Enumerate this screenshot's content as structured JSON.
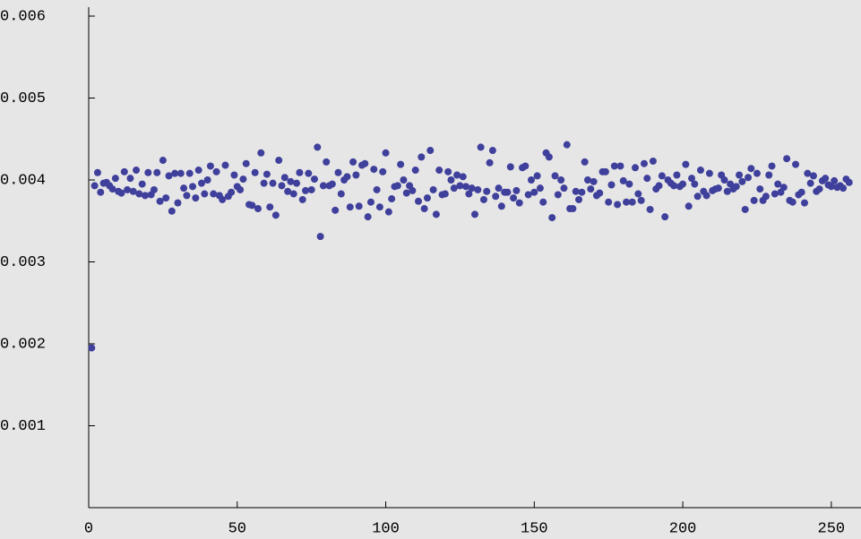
{
  "chart_data": {
    "type": "scatter",
    "color": "#3f3f9c",
    "xlim": [
      0,
      260
    ],
    "ylim": [
      0,
      0.006
    ],
    "xticks": [
      0,
      50,
      100,
      150,
      200,
      250
    ],
    "yticks": [
      0.001,
      0.002,
      0.003,
      0.004,
      0.005,
      0.006
    ],
    "x": [
      1,
      2,
      3,
      4,
      5,
      6,
      7,
      8,
      9,
      10,
      11,
      12,
      13,
      14,
      15,
      16,
      17,
      18,
      19,
      20,
      21,
      22,
      23,
      24,
      25,
      26,
      27,
      28,
      29,
      30,
      31,
      32,
      33,
      34,
      35,
      36,
      37,
      38,
      39,
      40,
      41,
      42,
      43,
      44,
      45,
      46,
      47,
      48,
      49,
      50,
      51,
      52,
      53,
      54,
      55,
      56,
      57,
      58,
      59,
      60,
      61,
      62,
      63,
      64,
      65,
      66,
      67,
      68,
      69,
      70,
      71,
      72,
      73,
      74,
      75,
      76,
      77,
      78,
      79,
      80,
      81,
      82,
      83,
      84,
      85,
      86,
      87,
      88,
      89,
      90,
      91,
      92,
      93,
      94,
      95,
      96,
      97,
      98,
      99,
      100,
      101,
      102,
      103,
      104,
      105,
      106,
      107,
      108,
      109,
      110,
      111,
      112,
      113,
      114,
      115,
      116,
      117,
      118,
      119,
      120,
      121,
      122,
      123,
      124,
      125,
      126,
      127,
      128,
      129,
      130,
      131,
      132,
      133,
      134,
      135,
      136,
      137,
      138,
      139,
      140,
      141,
      142,
      143,
      144,
      145,
      146,
      147,
      148,
      149,
      150,
      151,
      152,
      153,
      154,
      155,
      156,
      157,
      158,
      159,
      160,
      161,
      162,
      163,
      164,
      165,
      166,
      167,
      168,
      169,
      170,
      171,
      172,
      173,
      174,
      175,
      176,
      177,
      178,
      179,
      180,
      181,
      182,
      183,
      184,
      185,
      186,
      187,
      188,
      189,
      190,
      191,
      192,
      193,
      194,
      195,
      196,
      197,
      198,
      199,
      200,
      201,
      202,
      203,
      204,
      205,
      206,
      207,
      208,
      209,
      210,
      211,
      212,
      213,
      214,
      215,
      216,
      217,
      218,
      219,
      220,
      221,
      222,
      223,
      224,
      225,
      226,
      227,
      228,
      229,
      230,
      231,
      232,
      233,
      234,
      235,
      236,
      237,
      238,
      239,
      240,
      241,
      242,
      243,
      244,
      245,
      246,
      247,
      248,
      249,
      250,
      251,
      252,
      253,
      254,
      255,
      256
    ],
    "values": [
      0.00195,
      0.00393,
      0.00409,
      0.00385,
      0.00396,
      0.00397,
      0.00393,
      0.00389,
      0.00402,
      0.00386,
      0.00384,
      0.0041,
      0.00388,
      0.00402,
      0.00386,
      0.00412,
      0.00383,
      0.00395,
      0.00381,
      0.00409,
      0.00382,
      0.00388,
      0.00409,
      0.00374,
      0.00424,
      0.00378,
      0.00405,
      0.00362,
      0.00408,
      0.00372,
      0.00408,
      0.0039,
      0.00381,
      0.00408,
      0.00392,
      0.00378,
      0.00412,
      0.00396,
      0.00383,
      0.004,
      0.00417,
      0.00383,
      0.0041,
      0.00381,
      0.00376,
      0.00418,
      0.0038,
      0.00385,
      0.00406,
      0.00392,
      0.00388,
      0.00401,
      0.0042,
      0.0037,
      0.00369,
      0.00409,
      0.00365,
      0.00433,
      0.00396,
      0.00407,
      0.00367,
      0.00396,
      0.00357,
      0.00424,
      0.00393,
      0.00403,
      0.00386,
      0.00398,
      0.00383,
      0.00396,
      0.00409,
      0.00376,
      0.00387,
      0.00408,
      0.00388,
      0.00401,
      0.0044,
      0.00331,
      0.00393,
      0.00422,
      0.00393,
      0.00395,
      0.00363,
      0.00409,
      0.00383,
      0.004,
      0.00404,
      0.00367,
      0.00422,
      0.00406,
      0.00368,
      0.00418,
      0.0042,
      0.00355,
      0.00373,
      0.00413,
      0.00388,
      0.00367,
      0.0041,
      0.00433,
      0.00361,
      0.00377,
      0.00392,
      0.00393,
      0.00419,
      0.004,
      0.00384,
      0.00393,
      0.00387,
      0.00412,
      0.00374,
      0.00428,
      0.00365,
      0.00378,
      0.00436,
      0.00388,
      0.00358,
      0.00412,
      0.00382,
      0.00383,
      0.0041,
      0.004,
      0.0039,
      0.00406,
      0.00393,
      0.00404,
      0.00392,
      0.00383,
      0.0039,
      0.00358,
      0.00388,
      0.0044,
      0.00376,
      0.00386,
      0.00421,
      0.00436,
      0.0038,
      0.0039,
      0.00368,
      0.00385,
      0.00385,
      0.00416,
      0.00378,
      0.00387,
      0.00372,
      0.00415,
      0.00417,
      0.00382,
      0.004,
      0.00385,
      0.00405,
      0.0039,
      0.00373,
      0.00433,
      0.00428,
      0.00354,
      0.00405,
      0.00382,
      0.004,
      0.0039,
      0.00443,
      0.00365,
      0.00365,
      0.00386,
      0.00376,
      0.00385,
      0.00422,
      0.004,
      0.00389,
      0.00398,
      0.00381,
      0.00384,
      0.0041,
      0.0041,
      0.00373,
      0.00394,
      0.00417,
      0.0037,
      0.00417,
      0.00399,
      0.00373,
      0.00395,
      0.00373,
      0.00415,
      0.00383,
      0.00375,
      0.0042,
      0.00402,
      0.00364,
      0.00423,
      0.00389,
      0.00393,
      0.00405,
      0.00355,
      0.004,
      0.00396,
      0.00393,
      0.00406,
      0.00392,
      0.00395,
      0.00419,
      0.00368,
      0.00402,
      0.00395,
      0.0038,
      0.00412,
      0.00386,
      0.00381,
      0.00408,
      0.00387,
      0.00389,
      0.0039,
      0.00406,
      0.004,
      0.00386,
      0.00395,
      0.00389,
      0.00392,
      0.00406,
      0.00398,
      0.00364,
      0.00403,
      0.00414,
      0.00375,
      0.00408,
      0.00389,
      0.00375,
      0.0038,
      0.00406,
      0.00417,
      0.00383,
      0.00395,
      0.00385,
      0.00391,
      0.00426,
      0.00375,
      0.00373,
      0.00419,
      0.00382,
      0.00385,
      0.00372,
      0.00408,
      0.00396,
      0.00405,
      0.00386,
      0.00389,
      0.00399,
      0.00402,
      0.00394,
      0.00392,
      0.00399,
      0.00391,
      0.00393,
      0.0039,
      0.00401,
      0.00397
    ]
  }
}
